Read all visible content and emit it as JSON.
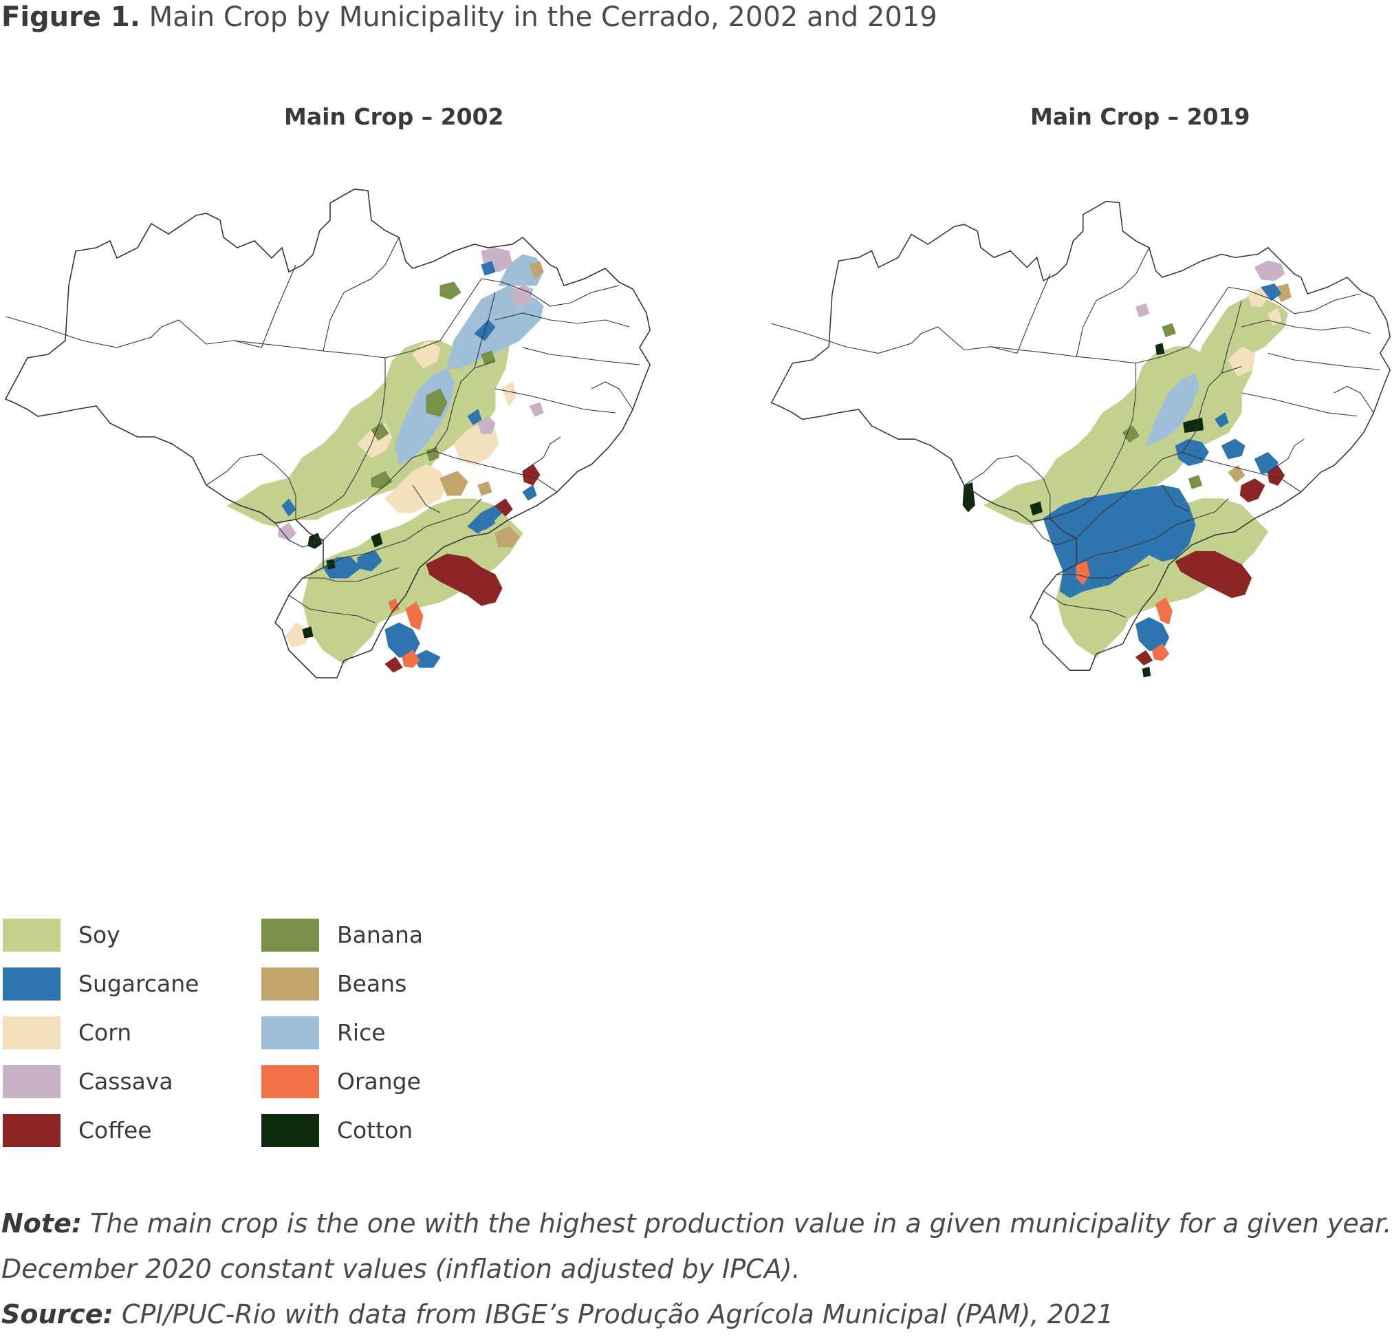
{
  "figure": {
    "label": "Figure 1.",
    "title": "Main Crop by Municipality in the Cerrado, 2002 and 2019"
  },
  "maps": [
    {
      "title": "Main Crop – 2002"
    },
    {
      "title": "Main Crop – 2019"
    }
  ],
  "legend": [
    {
      "label": "Soy",
      "color": "#c3d18f"
    },
    {
      "label": "Sugarcane",
      "color": "#2e75b0"
    },
    {
      "label": "Corn",
      "color": "#f3e0bd"
    },
    {
      "label": "Cassava",
      "color": "#c7b2c6"
    },
    {
      "label": "Coffee",
      "color": "#8c2626"
    },
    {
      "label": "Banana",
      "color": "#7a8f47"
    },
    {
      "label": "Beans",
      "color": "#c2a56c"
    },
    {
      "label": "Rice",
      "color": "#9fbfd8"
    },
    {
      "label": "Orange",
      "color": "#f07148"
    },
    {
      "label": "Cotton",
      "color": "#0f2a0f"
    }
  ],
  "note": {
    "label": "Note:",
    "line1": "The main crop is the one with the highest production value in a given municipality for a given year.",
    "line2": "December 2020 constant values (inflation adjusted by IPCA)."
  },
  "source": {
    "label": "Source:",
    "text": "CPI/PUC-Rio with data from IBGE’s Produção Agrícola Municipal (PAM), 2021"
  }
}
